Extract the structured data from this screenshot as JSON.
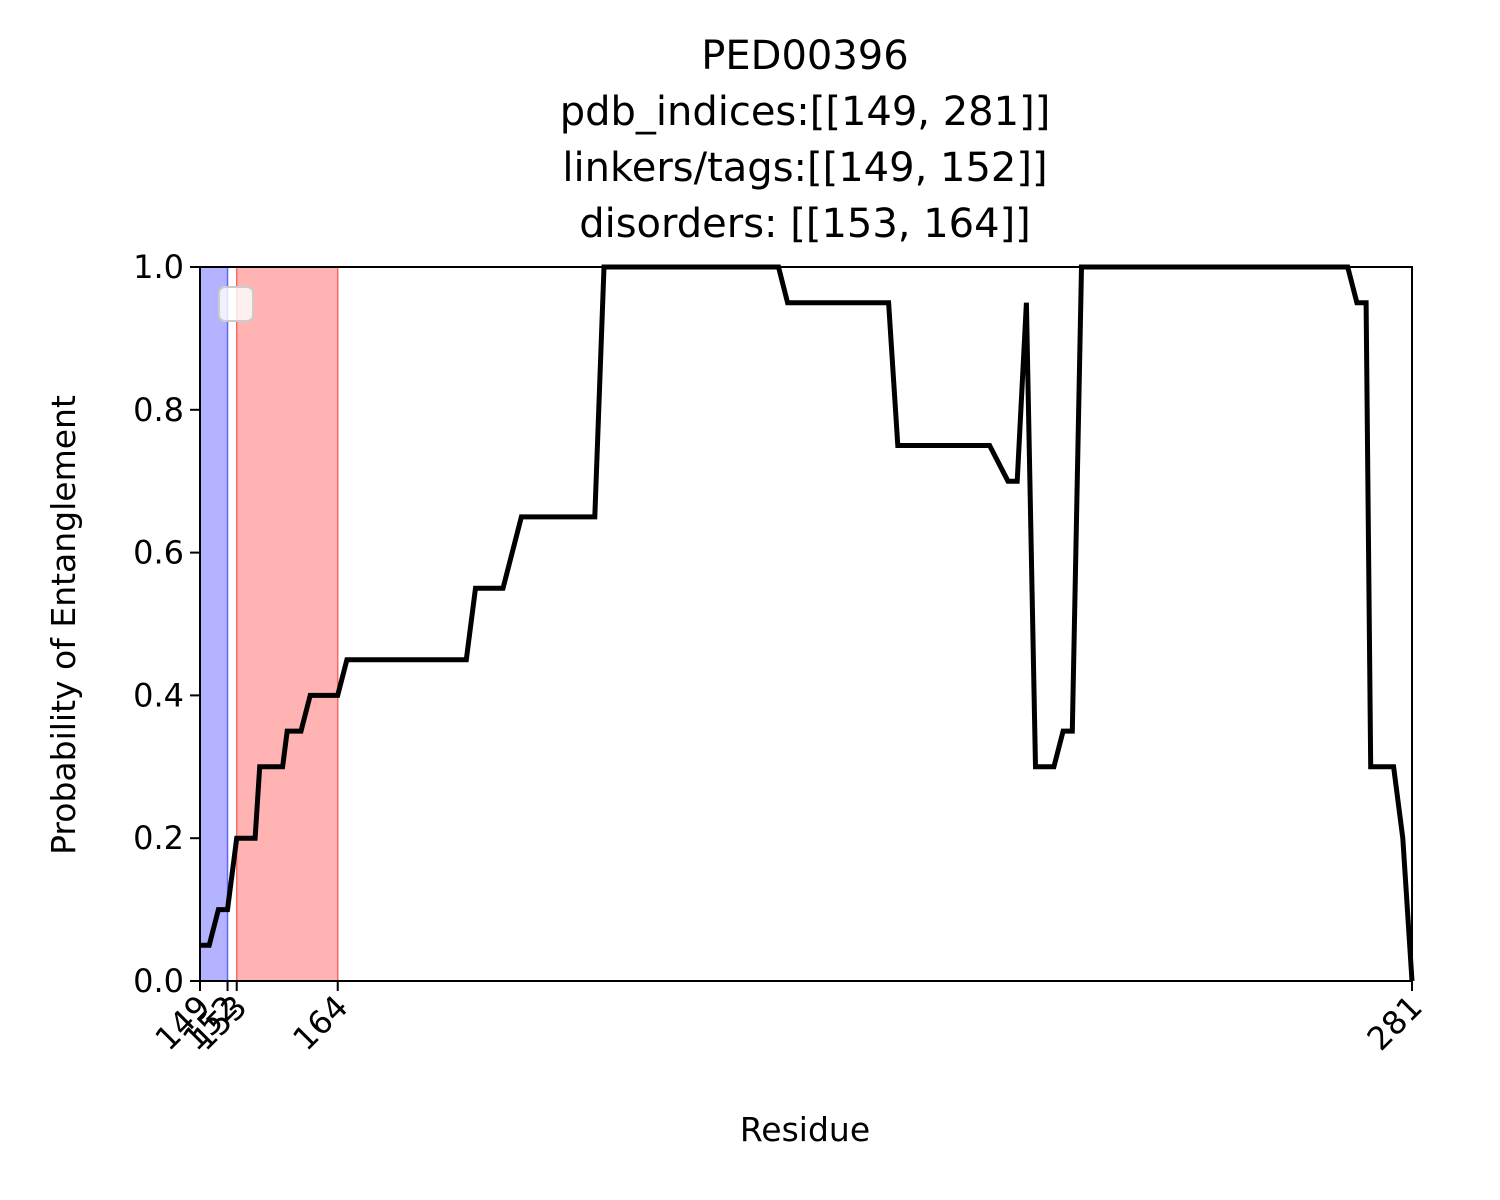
{
  "chart_data": {
    "type": "line",
    "title": "PED00396",
    "subtitle_lines": [
      "pdb_indices:[[149, 281]]",
      "linkers/tags:[[149, 152]]",
      "disorders: [[153, 164]]"
    ],
    "xlabel": "Residue",
    "ylabel": "Probability of Entanglement",
    "xlim": [
      149,
      281
    ],
    "ylim": [
      0,
      1
    ],
    "x_ticks": [
      149,
      152,
      153,
      164,
      281
    ],
    "x_tick_labels": [
      "149",
      "152",
      "153",
      "164",
      "281"
    ],
    "y_ticks": [
      0.0,
      0.2,
      0.4,
      0.6,
      0.8,
      1.0
    ],
    "y_tick_labels": [
      "0.0",
      "0.2",
      "0.4",
      "0.6",
      "0.8",
      "1.0"
    ],
    "grid": false,
    "legend": {
      "placement": "upper-left",
      "entries": []
    },
    "shaded_regions": [
      {
        "label": "linkers/tags",
        "x_start": 149,
        "x_end": 152,
        "color": "#b3b3ff",
        "edge": "#6666ff"
      },
      {
        "label": "disorders",
        "x_start": 153,
        "x_end": 164,
        "color": "#ffb3b3",
        "edge": "#ff6666"
      }
    ],
    "series": [
      {
        "color": "#000000",
        "x": [
          149,
          150,
          151,
          151.5,
          152,
          153,
          153.5,
          155,
          155.5,
          157,
          158,
          158.5,
          160,
          161,
          162,
          164,
          165,
          168,
          174,
          178,
          179,
          181,
          182,
          184,
          186,
          189,
          192,
          193,
          212,
          213,
          224,
          225,
          234,
          235,
          237,
          238,
          239,
          240,
          240.5,
          242,
          243,
          243.5,
          244,
          245,
          246,
          274,
          275,
          276,
          276.5,
          278,
          279,
          280,
          281
        ],
        "y": [
          0.05,
          0.05,
          0.1,
          0.1,
          0.1,
          0.2,
          0.2,
          0.2,
          0.3,
          0.3,
          0.3,
          0.35,
          0.35,
          0.4,
          0.4,
          0.4,
          0.45,
          0.45,
          0.45,
          0.45,
          0.55,
          0.55,
          0.55,
          0.65,
          0.65,
          0.65,
          0.65,
          1.0,
          1.0,
          0.95,
          0.95,
          0.75,
          0.75,
          0.75,
          0.7,
          0.7,
          0.95,
          0.3,
          0.3,
          0.3,
          0.35,
          0.35,
          0.35,
          1.0,
          1.0,
          1.0,
          0.95,
          0.95,
          0.3,
          0.3,
          0.3,
          0.2,
          0.0
        ]
      }
    ]
  }
}
